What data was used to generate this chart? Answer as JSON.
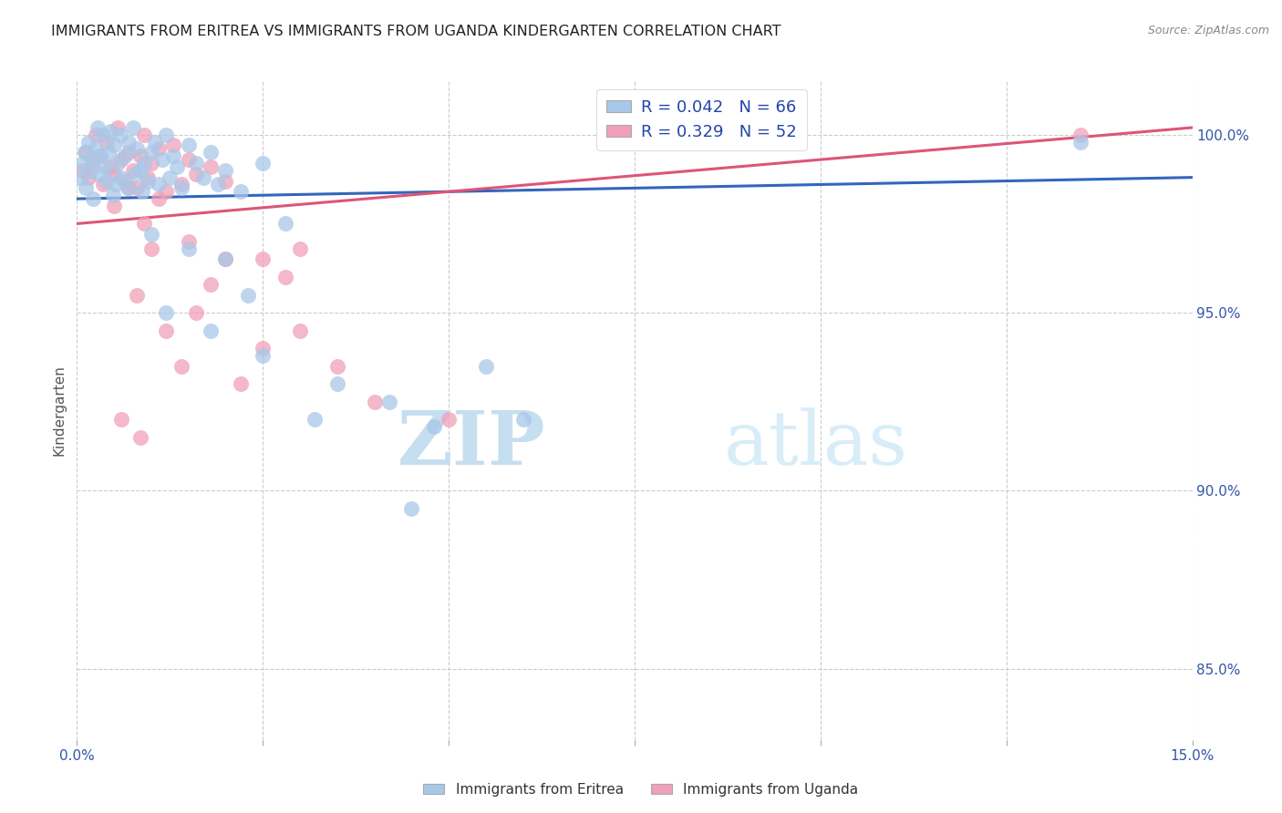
{
  "title": "IMMIGRANTS FROM ERITREA VS IMMIGRANTS FROM UGANDA KINDERGARTEN CORRELATION CHART",
  "source": "Source: ZipAtlas.com",
  "ylabel": "Kindergarten",
  "xlim": [
    0.0,
    15.0
  ],
  "ylim": [
    83.0,
    101.5
  ],
  "xtick_positions": [
    0.0,
    2.5,
    5.0,
    7.5,
    10.0,
    12.5,
    15.0
  ],
  "xtick_labels": [
    "0.0%",
    "",
    "",
    "",
    "",
    "",
    "15.0%"
  ],
  "ytick_positions": [
    85.0,
    90.0,
    95.0,
    100.0
  ],
  "ytick_labels": [
    "85.0%",
    "90.0%",
    "95.0%",
    "100.0%"
  ],
  "legend_eritrea": "Immigrants from Eritrea",
  "legend_uganda": "Immigrants from Uganda",
  "R_eritrea": 0.042,
  "N_eritrea": 66,
  "R_uganda": 0.329,
  "N_uganda": 52,
  "color_eritrea": "#a8c8e8",
  "color_uganda": "#f0a0b8",
  "trendline_color_eritrea": "#3366bb",
  "trendline_color_uganda": "#dd5577",
  "watermark": "ZIPatlas",
  "watermark_color": "#d8edf8",
  "eritrea_x": [
    0.05,
    0.08,
    0.1,
    0.12,
    0.15,
    0.18,
    0.2,
    0.22,
    0.25,
    0.28,
    0.3,
    0.32,
    0.35,
    0.38,
    0.4,
    0.42,
    0.45,
    0.48,
    0.5,
    0.52,
    0.55,
    0.58,
    0.6,
    0.65,
    0.68,
    0.7,
    0.75,
    0.78,
    0.8,
    0.85,
    0.88,
    0.9,
    0.95,
    1.0,
    1.05,
    1.1,
    1.15,
    1.2,
    1.25,
    1.3,
    1.35,
    1.4,
    1.5,
    1.6,
    1.7,
    1.8,
    1.9,
    2.0,
    2.2,
    2.5,
    1.0,
    1.5,
    2.0,
    2.8,
    3.5,
    4.2,
    4.8,
    5.5,
    6.0,
    13.5,
    1.2,
    1.8,
    2.5,
    3.2,
    4.5,
    2.3
  ],
  "eritrea_y": [
    98.8,
    99.2,
    99.5,
    98.5,
    99.8,
    99.0,
    99.3,
    98.2,
    99.6,
    100.2,
    98.9,
    99.4,
    100.0,
    99.1,
    98.7,
    99.5,
    100.1,
    98.3,
    99.7,
    98.6,
    99.2,
    100.0,
    98.8,
    99.4,
    98.5,
    99.8,
    100.2,
    98.9,
    99.6,
    99.0,
    98.4,
    99.2,
    98.7,
    99.5,
    99.8,
    98.6,
    99.3,
    100.0,
    98.8,
    99.4,
    99.1,
    98.5,
    99.7,
    99.2,
    98.8,
    99.5,
    98.6,
    99.0,
    98.4,
    99.2,
    97.2,
    96.8,
    96.5,
    97.5,
    93.0,
    92.5,
    91.8,
    93.5,
    92.0,
    99.8,
    95.0,
    94.5,
    93.8,
    92.0,
    89.5,
    95.5
  ],
  "uganda_x": [
    0.08,
    0.12,
    0.15,
    0.2,
    0.25,
    0.3,
    0.35,
    0.4,
    0.45,
    0.5,
    0.55,
    0.6,
    0.65,
    0.7,
    0.75,
    0.8,
    0.85,
    0.9,
    0.95,
    1.0,
    1.1,
    1.2,
    1.3,
    1.4,
    1.5,
    1.6,
    1.8,
    2.0,
    2.5,
    3.0,
    0.5,
    0.7,
    0.9,
    1.1,
    1.5,
    2.0,
    3.5,
    13.5,
    0.8,
    1.0,
    1.2,
    1.6,
    2.2,
    3.0,
    4.0,
    5.0,
    2.8,
    1.8,
    0.6,
    0.85,
    1.4,
    2.5
  ],
  "uganda_y": [
    99.0,
    99.5,
    98.8,
    99.2,
    100.0,
    99.4,
    98.6,
    99.8,
    99.1,
    98.9,
    100.2,
    99.3,
    98.7,
    99.5,
    99.0,
    98.5,
    99.4,
    100.0,
    98.8,
    99.2,
    99.6,
    98.4,
    99.7,
    98.6,
    99.3,
    98.9,
    99.1,
    98.7,
    96.5,
    96.8,
    98.0,
    98.5,
    97.5,
    98.2,
    97.0,
    96.5,
    93.5,
    100.0,
    95.5,
    96.8,
    94.5,
    95.0,
    93.0,
    94.5,
    92.5,
    92.0,
    96.0,
    95.8,
    92.0,
    91.5,
    93.5,
    94.0
  ],
  "trendline_eritrea_y0": 98.2,
  "trendline_eritrea_y1": 98.8,
  "trendline_uganda_y0": 97.5,
  "trendline_uganda_y1": 100.2
}
